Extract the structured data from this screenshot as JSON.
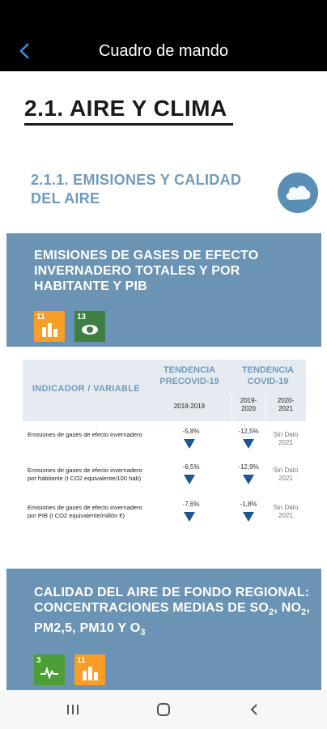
{
  "topbar": {
    "title": "Cuadro de mando"
  },
  "page": {
    "heading": "2.1. AIRE Y CLIMA",
    "subheading": "2.1.1. EMISIONES Y CALIDAD DEL AIRE"
  },
  "card1": {
    "title": "EMISIONES DE GASES DE EFECTO INVERNADERO TOTALES Y POR HABITANTE Y PIB",
    "sdg": [
      {
        "num": "11",
        "color": "#f99d26",
        "icon": "city-icon"
      },
      {
        "num": "13",
        "color": "#3f7e44",
        "icon": "eye-icon"
      }
    ]
  },
  "table": {
    "header": {
      "indicator": "INDICADOR / VARIABLE",
      "precovid": "TENDENCIA PRECOVID-19",
      "covid": "TENDENCIA COVID-19",
      "y1": "2018-2019",
      "y2": "2019-2020",
      "y3": "2020-2021"
    },
    "rows": [
      {
        "indicator": "Emisiones de gases de efecto invernadero",
        "pre": "-5,8%",
        "cov": "-12,5%",
        "nd": "Sin Dato 2021"
      },
      {
        "indicator": "Emisiones de gases de efecto invernadero por habitante (t CO2 equivalente/100 hab)",
        "pre": "-6,5%",
        "cov": "-12,9%",
        "nd": "Sin Dato 2021"
      },
      {
        "indicator": "Emisiones de gases de efecto invernadero por PIB (t CO2 equivalente/millón €)",
        "pre": "-7,6%",
        "cov": "-1,8%",
        "nd": "Sin Dato 2021"
      }
    ],
    "trend_color": "#1f5593"
  },
  "card2": {
    "title_line1": "CALIDAD DEL AIRE DE FONDO REGIONAL:",
    "title_line2a": "CONCENTRACIONES MEDIAS DE SO",
    "title_sub2": "2",
    "title_line2b": ", NO",
    "title_sub3": "2",
    "title_line2c": ",",
    "title_line3a": "PM2,5, PM10 Y O",
    "title_sub1": "3",
    "sdg": [
      {
        "num": "3",
        "color": "#4c9f38",
        "icon": "heartbeat-icon"
      },
      {
        "num": "11",
        "color": "#f99d26",
        "icon": "city-icon"
      }
    ]
  },
  "navbar": {
    "recents": "recents-icon",
    "home": "home-icon",
    "back": "back-icon"
  }
}
